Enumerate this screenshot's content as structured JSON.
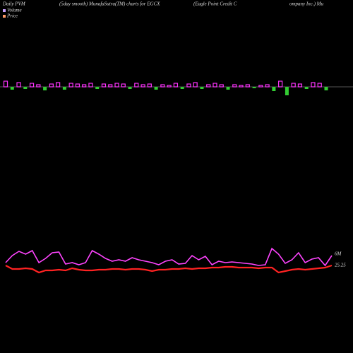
{
  "chart_data": {
    "type": "line",
    "title_parts": [
      "Daily PVM",
      "(5day smooth) MunafaSutra(TM) charts for EGCX",
      "(Eagle Point Credit C",
      "ompany Inc.) Mu"
    ],
    "legend": [
      {
        "name": "Volume",
        "color": "#c8a0ff"
      },
      {
        "name": "Price",
        "color": "#ff9966"
      }
    ],
    "volume": {
      "up_color": "#ff33ff",
      "down_color": "#33cc33",
      "values": [
        8,
        -4,
        6,
        -3,
        5,
        3,
        -5,
        4,
        6,
        -4,
        5,
        4,
        3,
        5,
        -3,
        4,
        3,
        5,
        4,
        -3,
        5,
        3,
        4,
        -4,
        3,
        2,
        5,
        -3,
        4,
        6,
        -3,
        3,
        5,
        3,
        -4,
        3,
        2,
        3,
        -2,
        2,
        3,
        -6,
        8,
        -12,
        5,
        4,
        -3,
        6,
        5,
        -5
      ]
    },
    "ylim": [
      0,
      500
    ],
    "series": [
      {
        "name": "6M",
        "color": "#ff44ff",
        "values": [
          128,
          138,
          144,
          140,
          145,
          128,
          134,
          142,
          143,
          126,
          128,
          125,
          128,
          145,
          140,
          134,
          130,
          132,
          130,
          135,
          132,
          130,
          128,
          125,
          130,
          132,
          126,
          127,
          138,
          132,
          137,
          125,
          130,
          128,
          129,
          128,
          127,
          126,
          124,
          125,
          148,
          140,
          127,
          132,
          142,
          128,
          133,
          135,
          124,
          138
        ]
      },
      {
        "name": "25.25",
        "color": "#ff2222",
        "values": [
          124,
          119,
          119,
          120,
          119,
          114,
          117,
          117,
          118,
          117,
          120,
          118,
          117,
          117,
          118,
          118,
          119,
          119,
          118,
          119,
          119,
          118,
          116,
          118,
          118,
          119,
          119,
          120,
          119,
          120,
          120,
          121,
          121,
          122,
          122,
          121,
          121,
          121,
          120,
          121,
          121,
          114,
          116,
          118,
          119,
          118,
          119,
          120,
          121,
          124
        ]
      }
    ]
  }
}
